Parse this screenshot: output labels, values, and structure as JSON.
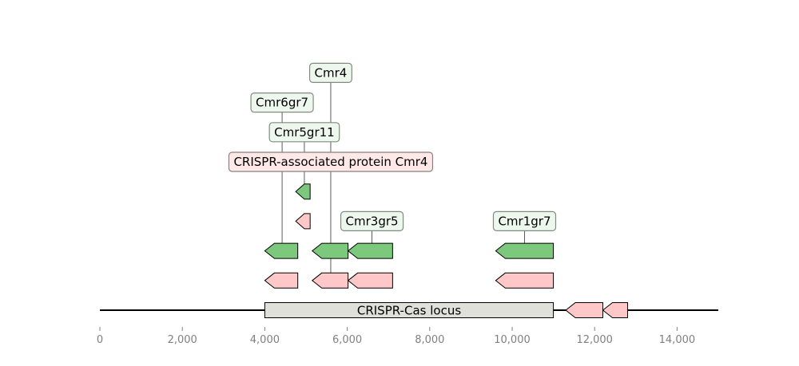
{
  "locus": {
    "start": 0,
    "end": 15000,
    "region": {
      "start": 4000,
      "end": 11000,
      "label": "CRISPR-Cas locus",
      "fill": "#e0e0da"
    }
  },
  "axis": {
    "ticks": [
      0,
      2000,
      4000,
      6000,
      8000,
      10000,
      12000,
      14000
    ],
    "tick_labels": [
      "0",
      "2,000",
      "4,000",
      "6,000",
      "8,000",
      "10,000",
      "12,000",
      "14,000"
    ]
  },
  "colors": {
    "green": "#7cc87c",
    "pink": "#ffc8c8",
    "label_green_bg": "#eef7ee",
    "label_pink_bg": "#ffe8e8",
    "label_green_border": "#7f8c7f",
    "label_pink_border": "#8c7f7f"
  },
  "features": [
    {
      "start": 4000,
      "end": 4800,
      "strand": -1,
      "track": 2,
      "color": "green"
    },
    {
      "start": 5150,
      "end": 6020,
      "strand": -1,
      "track": 2,
      "color": "green"
    },
    {
      "start": 6020,
      "end": 7100,
      "strand": -1,
      "track": 2,
      "color": "green"
    },
    {
      "start": 9600,
      "end": 11000,
      "strand": -1,
      "track": 2,
      "color": "green"
    },
    {
      "start": 4750,
      "end": 5100,
      "strand": -1,
      "track": 4,
      "color": "green"
    },
    {
      "start": 4750,
      "end": 5100,
      "strand": -1,
      "track": 3,
      "color": "pink"
    },
    {
      "start": 4000,
      "end": 4800,
      "strand": -1,
      "track": 1,
      "color": "pink"
    },
    {
      "start": 5150,
      "end": 6020,
      "strand": -1,
      "track": 1,
      "color": "pink"
    },
    {
      "start": 6020,
      "end": 7100,
      "strand": -1,
      "track": 1,
      "color": "pink"
    },
    {
      "start": 9600,
      "end": 11000,
      "strand": -1,
      "track": 1,
      "color": "pink"
    },
    {
      "start": 11300,
      "end": 12200,
      "strand": -1,
      "track": 0,
      "color": "pink"
    },
    {
      "start": 12200,
      "end": 12800,
      "strand": -1,
      "track": 0,
      "color": "pink"
    }
  ],
  "labels": [
    {
      "text": "Cmr4",
      "x": 5600,
      "anchor_track": 1,
      "level": 8,
      "style": "green"
    },
    {
      "text": "Cmr6gr7",
      "x": 4420,
      "anchor_track": 2,
      "level": 7,
      "style": "green"
    },
    {
      "text": "Cmr5gr11",
      "x": 4960,
      "anchor_track": 4,
      "level": 6,
      "style": "green"
    },
    {
      "text": "CRISPR-associated protein Cmr4",
      "x": 5600,
      "anchor_track": 1,
      "level": 5,
      "style": "pink",
      "no_line": true
    },
    {
      "text": "Cmr3gr5",
      "x": 6600,
      "anchor_track": 2,
      "level": 3,
      "style": "green"
    },
    {
      "text": "Cmr1gr7",
      "x": 10300,
      "anchor_track": 2,
      "level": 3,
      "style": "green"
    }
  ]
}
